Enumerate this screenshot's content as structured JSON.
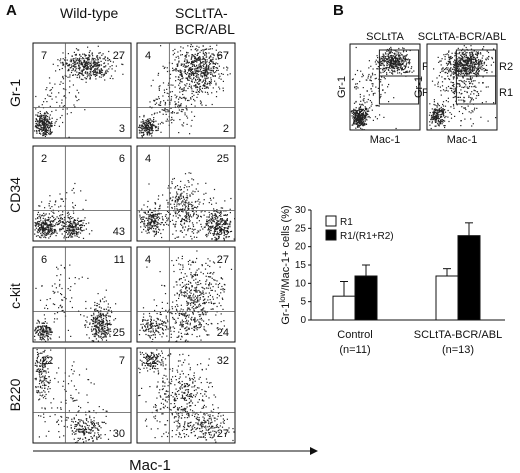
{
  "figure": {
    "panel_a_label": "A",
    "panel_b_label": "B",
    "panel_a": {
      "columns": [
        "Wild-type",
        "SCLtTA-\nBCR/ABL"
      ],
      "column_line1": [
        "Wild-type",
        "SCLtTA-"
      ],
      "column_line2": [
        "",
        "BCR/ABL"
      ],
      "rows": [
        "Gr-1",
        "CD34",
        "c-kit",
        "B220"
      ],
      "x_axis_label": "Mac-1",
      "plots": [
        {
          "row": "Gr-1",
          "col": "Wild-type",
          "ul": "7",
          "ur": "27",
          "lr": "3"
        },
        {
          "row": "Gr-1",
          "col": "SCLtTA-BCR/ABL",
          "ul": "4",
          "ur": "67",
          "lr": "2"
        },
        {
          "row": "CD34",
          "col": "Wild-type",
          "ul": "2",
          "ur": "6",
          "lr": "43"
        },
        {
          "row": "CD34",
          "col": "SCLtTA-BCR/ABL",
          "ul": "4",
          "ur": "25",
          "lr": "36"
        },
        {
          "row": "c-kit",
          "col": "Wild-type",
          "ul": "6",
          "ur": "11",
          "lr": "25"
        },
        {
          "row": "c-kit",
          "col": "SCLtTA-BCR/ABL",
          "ul": "4",
          "ur": "27",
          "lr": "24"
        },
        {
          "row": "B220",
          "col": "Wild-type",
          "ul": "22",
          "ur": "7",
          "lr": "30"
        },
        {
          "row": "B220",
          "col": "SCLtTA-BCR/ABL",
          "ul": "22",
          "ur": "32",
          "lr": "27"
        }
      ]
    },
    "panel_b_top": {
      "plots": [
        {
          "title": "SCLtTA",
          "y_label": "Gr-1",
          "x_label": "Mac-1",
          "gates": [
            "R2",
            "R1"
          ]
        },
        {
          "title": "SCLtTA-BCR/ABL",
          "y_label": "Gr-1",
          "x_label": "Mac-1",
          "gates": [
            "R2",
            "R1"
          ]
        }
      ]
    }
  },
  "chart_data": {
    "type": "bar",
    "categories": [
      "Control",
      "SCLtTA-BCR/ABL"
    ],
    "category_sublabels": [
      "(n=11)",
      "(n=13)"
    ],
    "series": [
      {
        "name": "R1",
        "values": [
          6.5,
          12
        ],
        "errors": [
          4,
          2
        ],
        "color": "#ffffff"
      },
      {
        "name": "R1/(R1+R2)",
        "values": [
          12,
          23
        ],
        "errors": [
          3,
          3.5
        ],
        "color": "#000000"
      }
    ],
    "ylabel": "Gr-1low/Mac-1+ cells (%)",
    "ylabel_main": "Gr-1",
    "ylabel_sup": "low",
    "ylabel_rest": "/Mac-1+ cells (%)",
    "yticks": [
      "0",
      "5",
      "10",
      "15",
      "20",
      "25",
      "30"
    ],
    "ylim": [
      0,
      30
    ],
    "legend_position": "top-left",
    "grid": false
  }
}
